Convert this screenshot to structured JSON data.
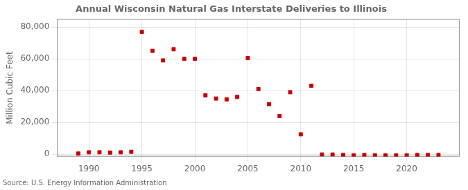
{
  "chart_data": {
    "type": "scatter",
    "title": "Annual Wisconsin Natural Gas Interstate Deliveries to Illinois",
    "ylabel": "Million Cubic Feet",
    "annotations": [
      "Source: U.S. Energy Information Administration"
    ],
    "x": [
      1989,
      1990,
      1991,
      1992,
      1993,
      1994,
      1995,
      1996,
      1997,
      1998,
      1999,
      2000,
      2001,
      2002,
      2003,
      2004,
      2005,
      2006,
      2007,
      2008,
      2009,
      2010,
      2011,
      2012,
      2013,
      2014,
      2015,
      2016,
      2017,
      2018,
      2019,
      2020,
      2021,
      2022,
      2023
    ],
    "values": [
      400,
      1200,
      1200,
      1000,
      1200,
      1500,
      77000,
      65000,
      59000,
      66000,
      60000,
      60000,
      37000,
      35000,
      34500,
      36000,
      60500,
      41000,
      31500,
      24000,
      39000,
      12500,
      43000,
      -200,
      -200,
      -500,
      -700,
      -500,
      -700,
      -700,
      -700,
      -700,
      -500,
      -500,
      -500
    ],
    "color": "#cc0000",
    "marker": "square",
    "xlim": [
      1987,
      2025
    ],
    "xticks": [
      1990,
      1995,
      2000,
      2005,
      2010,
      2015,
      2020
    ],
    "ylim": [
      -1500,
      85000
    ],
    "yticks": [
      0,
      {
        "value": 20000,
        "label": "20,000"
      },
      {
        "value": 40000,
        "label": "40,000"
      },
      {
        "value": 60000,
        "label": "60,000"
      },
      {
        "value": 80000,
        "label": "80,000"
      }
    ],
    "grid": true
  }
}
